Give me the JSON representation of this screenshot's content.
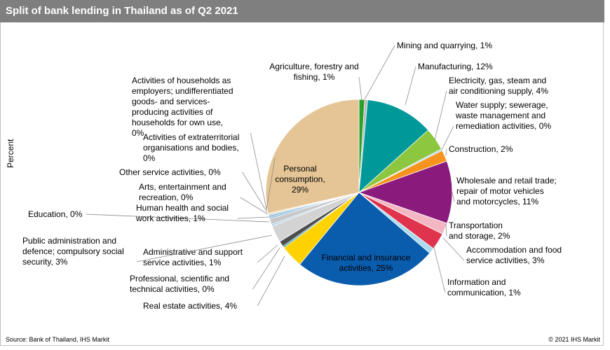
{
  "title": "Split of bank lending in Thailand as of Q2 2021",
  "source": "Source: Bank of Thailand, IHS Markit",
  "copyright": "© 2021 IHS Markit",
  "chart_data": {
    "type": "pie",
    "ylabel": "Percent",
    "start_angle_deg": 0,
    "direction": "clockwise",
    "slices": [
      {
        "name": "Agriculture, forestry and fishing",
        "value": 1,
        "color": "#2ca02c",
        "label_lines": [
          "Agriculture, forestry and",
          "fishing, 1%"
        ]
      },
      {
        "name": "Mining and quarrying",
        "value": 0.5,
        "color": "#b7b7b7",
        "label_lines": [
          "Mining and quarrying, 1%"
        ]
      },
      {
        "name": "Manufacturing",
        "value": 12,
        "color": "#009999",
        "label_lines": [
          "Manufacturing, 12%"
        ]
      },
      {
        "name": "Electricity, gas, steam and air conditioning supply",
        "value": 4,
        "color": "#8dc63f",
        "label_lines": [
          "Electricity, gas, steam and",
          "air conditioning supply, 4%"
        ]
      },
      {
        "name": "Water supply; sewerage, waste management and remediation activities",
        "value": 0.3,
        "color": "#a6d4e8",
        "label_lines": [
          "Water supply; sewerage,",
          "waste management and",
          "remediation activities, 0%"
        ]
      },
      {
        "name": "Construction",
        "value": 2,
        "color": "#f7941d",
        "label_lines": [
          "Construction, 2%"
        ]
      },
      {
        "name": "Wholesale and retail trade; repair of motor vehicles and motorcycles",
        "value": 11,
        "color": "#8b1a7d",
        "label_lines": [
          "Wholesale and retail trade;",
          "repair of motor vehicles",
          "and motorcycles, 11%"
        ]
      },
      {
        "name": "Transportation and storage",
        "value": 2,
        "color": "#f4b6c2",
        "label_lines": [
          "Transportation",
          "and storage, 2%"
        ]
      },
      {
        "name": "Accommodation and food service activities",
        "value": 3,
        "color": "#e0334e",
        "label_lines": [
          "Accommodation and food",
          "service activities, 3%"
        ]
      },
      {
        "name": "Information and communication",
        "value": 1,
        "color": "#a9dced",
        "label_lines": [
          "Information and",
          "communication, 1%"
        ]
      },
      {
        "name": "Financial and insurance activities",
        "value": 25,
        "color": "#0a5cad",
        "label_lines": [
          "Financial and insurance",
          "activities, 25%"
        ]
      },
      {
        "name": "Real estate activities",
        "value": 4,
        "color": "#ffd200",
        "label_lines": [
          "Real estate activities, 4%"
        ]
      },
      {
        "name": "Professional, scientific and technical activities",
        "value": 0.3,
        "color": "#2e9e9e",
        "label_lines": [
          "Professional, scientific and",
          "technical activities, 0%"
        ]
      },
      {
        "name": "Administrative and support service activities",
        "value": 1,
        "color": "#4d4d4d",
        "label_lines": [
          "Administrative and support",
          "service activities, 1%"
        ]
      },
      {
        "name": "Public administration and defence; compulsory social security",
        "value": 3,
        "color": "#d3d3d3",
        "label_lines": [
          "Public administration and",
          "defence; compulsory social",
          "security, 3%"
        ]
      },
      {
        "name": "Education",
        "value": 0.3,
        "color": "#9ec9e6",
        "label_lines": [
          "Education, 0%"
        ]
      },
      {
        "name": "Human health and social work activities",
        "value": 1,
        "color": "#c8c8c8",
        "label_lines": [
          "Human health and social",
          "work activities, 1%"
        ]
      },
      {
        "name": "Arts, entertainment and recreation",
        "value": 0.3,
        "color": "#7fb8d9",
        "label_lines": [
          "Arts, entertainment and",
          "recreation, 0%"
        ]
      },
      {
        "name": "Other service activities",
        "value": 0.3,
        "color": "#6baed6",
        "label_lines": [
          "Other service activities, 0%"
        ]
      },
      {
        "name": "Activities of extraterritorial organisations and bodies",
        "value": 0.2,
        "color": "#bdbdbd",
        "label_lines": [
          "Activities of extraterritorial",
          "organisations and bodies,",
          "0%"
        ]
      },
      {
        "name": "Activities of households as employers; undifferentiated goods- and services-producing activities of households for own use",
        "value": 0.2,
        "color": "#e6c48a",
        "label_lines": [
          "Activities of households as",
          "employers; undifferentiated",
          "goods- and services-",
          "producing activities of",
          "households for own use,",
          "0%"
        ]
      },
      {
        "name": "Personal consumption",
        "value": 29,
        "color": "#e5c596",
        "label_lines": [
          "Personal",
          "consumption,",
          "29%"
        ]
      }
    ]
  }
}
